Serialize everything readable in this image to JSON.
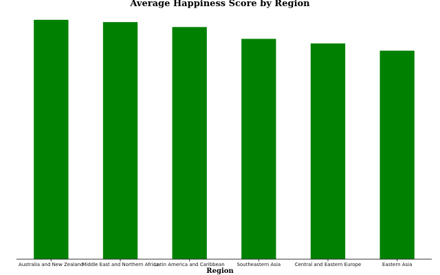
{
  "chart_data": {
    "type": "bar",
    "title": "Average Happiness Score by Region",
    "xlabel": "Region",
    "ylabel": "",
    "categories": [
      "Australia and New Zealand",
      "Middle East and Northern Africa",
      "Latin America and Caribbean",
      "Southeastern Asia",
      "Central and Eastern Europe",
      "Eastern Asia"
    ],
    "values": [
      7.29,
      7.22,
      7.07,
      6.71,
      6.57,
      6.35
    ],
    "ylim": [
      0,
      7.6
    ],
    "grid": false,
    "legend": "none",
    "bar_color": "#008000"
  }
}
